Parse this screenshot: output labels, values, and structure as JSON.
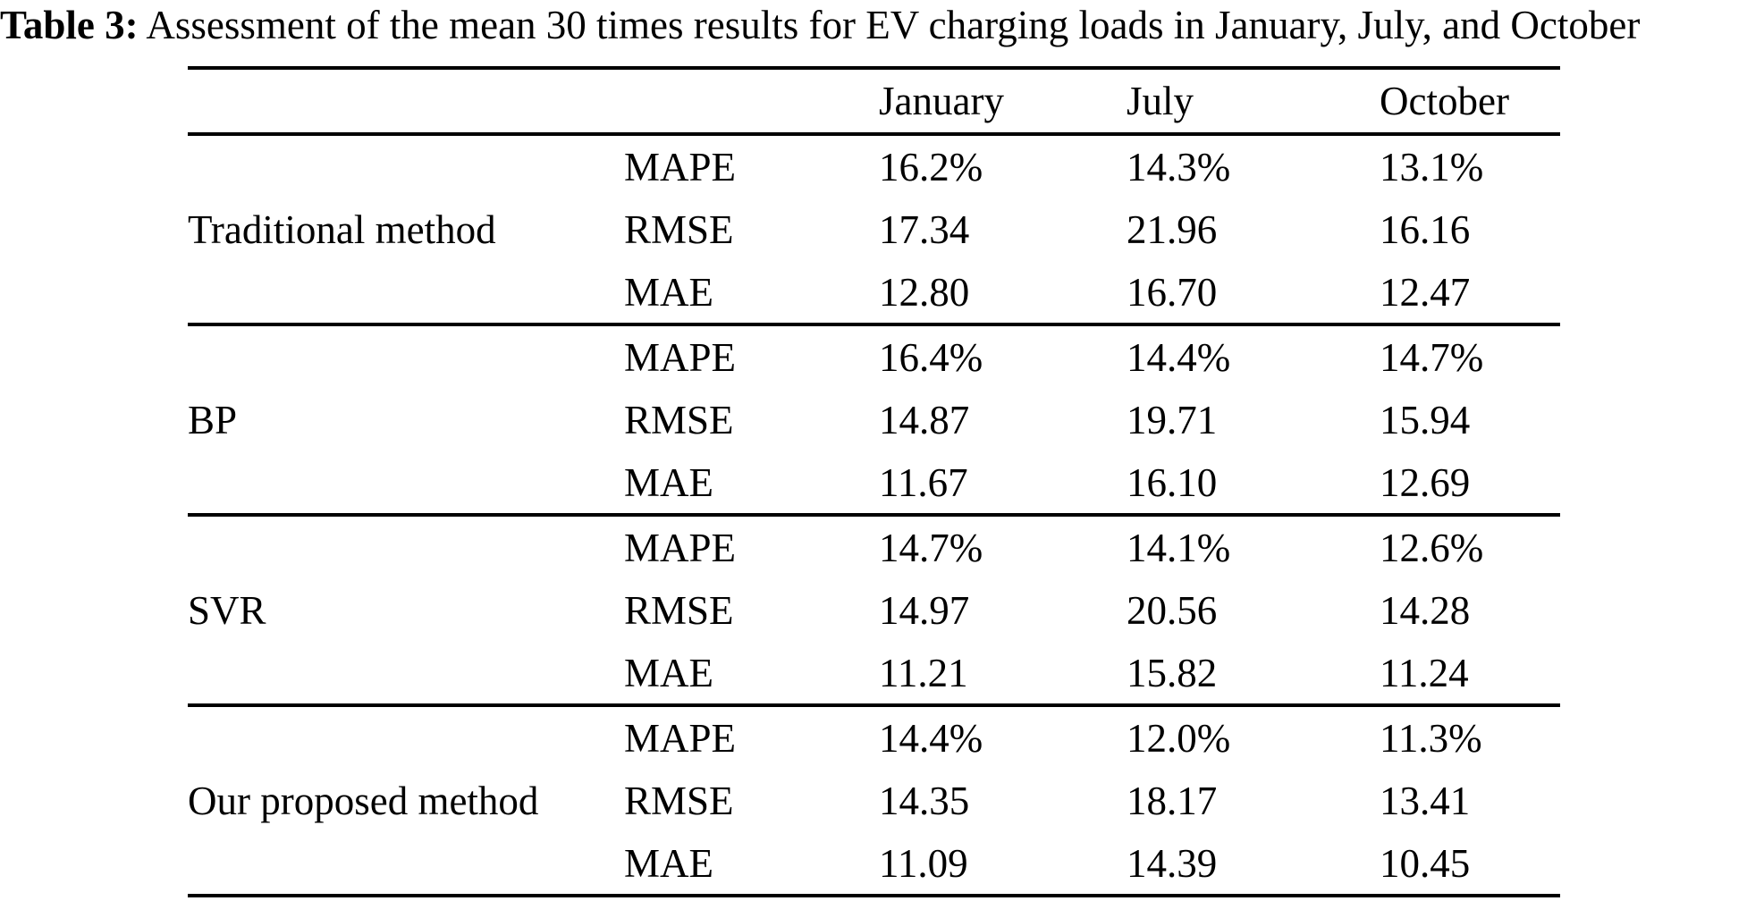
{
  "title": {
    "label": "Table 3:",
    "text": " Assessment of the mean 30 times results for EV charging loads in January, July, and October"
  },
  "table": {
    "column_headers": [
      "January",
      "July",
      "October"
    ],
    "sections": [
      {
        "method": "Traditional method",
        "rows": [
          {
            "metric": "MAPE",
            "january": "16.2%",
            "july": "14.3%",
            "october": "13.1%"
          },
          {
            "metric": "RMSE",
            "january": "17.34",
            "july": "21.96",
            "october": "16.16"
          },
          {
            "metric": "MAE",
            "january": "12.80",
            "july": "16.70",
            "october": "12.47"
          }
        ]
      },
      {
        "method": "BP",
        "rows": [
          {
            "metric": "MAPE",
            "january": "16.4%",
            "july": "14.4%",
            "october": "14.7%"
          },
          {
            "metric": "RMSE",
            "january": "14.87",
            "july": "19.71",
            "october": "15.94"
          },
          {
            "metric": "MAE",
            "january": "11.67",
            "july": "16.10",
            "october": "12.69"
          }
        ]
      },
      {
        "method": "SVR",
        "rows": [
          {
            "metric": "MAPE",
            "january": "14.7%",
            "july": "14.1%",
            "october": "12.6%"
          },
          {
            "metric": "RMSE",
            "january": "14.97",
            "july": "20.56",
            "october": "14.28"
          },
          {
            "metric": "MAE",
            "january": "11.21",
            "july": "15.82",
            "october": "11.24"
          }
        ]
      },
      {
        "method": "Our proposed method",
        "rows": [
          {
            "metric": "MAPE",
            "january": "14.4%",
            "july": "12.0%",
            "october": "11.3%"
          },
          {
            "metric": "RMSE",
            "january": "14.35",
            "july": "18.17",
            "october": "13.41"
          },
          {
            "metric": "MAE",
            "january": "11.09",
            "july": "14.39",
            "october": "10.45"
          }
        ]
      }
    ]
  }
}
